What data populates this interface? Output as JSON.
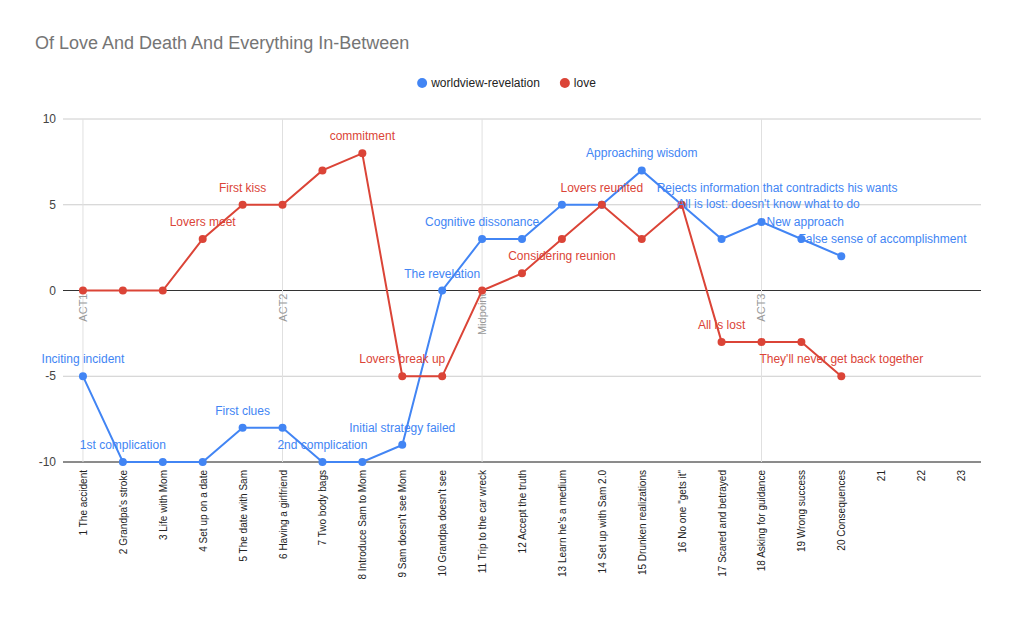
{
  "chart_data": {
    "type": "line",
    "title": "Of Love And Death And Everything In-Between",
    "categories": [
      "1 The accident",
      "2 Grandpa's stroke",
      "3 Life with Mom",
      "4 Set up on a date",
      "5 The date with Sam",
      "6 Having a girlfriend",
      "7 Two body bags",
      "8 Introduce Sam to Mom",
      "9 Sam doesn't see Mom",
      "10 Grandpa doesn't see",
      "11 Trip to the car wreck",
      "12 Accept the truth",
      "13 Learn he's a medium",
      "14 Set up with Sam 2.0",
      "15 Drunken realizations",
      "16 No one \"gets it\"",
      "17 Scared and betrayed",
      "18 Asking for guidance",
      "19 Wrong success",
      "20 Consequences",
      "21",
      "22",
      "23"
    ],
    "series": [
      {
        "name": "worldview-revelation",
        "color": "#4285f4",
        "marker": "circle",
        "values": [
          -5,
          -10,
          -10,
          -10,
          -8,
          -8,
          -10,
          -10,
          -9,
          0,
          3,
          3,
          5,
          5,
          7,
          5,
          3,
          4,
          3,
          2,
          null,
          null,
          null
        ],
        "annotations": [
          "Inciting incident",
          "1st complication",
          null,
          null,
          "First clues",
          null,
          "2nd complication",
          null,
          "Initial strategy failed",
          "The revelation",
          "Cognitive dissonance",
          null,
          null,
          null,
          "Approaching wisdom",
          "Rejects information that contradicts his wants",
          "All is lost: doesn't know what to do",
          "New approach",
          "False sense of accomplishment",
          null,
          null,
          null,
          null
        ]
      },
      {
        "name": "love",
        "color": "#db4437",
        "marker": "circle",
        "values": [
          0,
          0,
          0,
          3,
          5,
          5,
          7,
          8,
          -5,
          -5,
          0,
          1,
          3,
          5,
          3,
          5,
          -3,
          -3,
          -3,
          -5,
          null,
          null,
          null
        ],
        "annotations": [
          null,
          null,
          null,
          "Lovers meet",
          "First kiss",
          null,
          null,
          "commitment",
          "Lovers break up",
          null,
          null,
          null,
          "Considering reunion",
          "Lovers reunited",
          null,
          null,
          "All is lost",
          null,
          null,
          "They'll never get back together",
          null,
          null,
          null
        ]
      }
    ],
    "ylim": [
      -10,
      10
    ],
    "yticks": [
      -10,
      -5,
      0,
      5,
      10
    ],
    "grid": true,
    "legend": "top",
    "act_markers": [
      {
        "at": "1 The accident",
        "label": "ACT1"
      },
      {
        "at": "6 Having a girlfriend",
        "label": "ACT2"
      },
      {
        "at": "11 Trip to the car wreck",
        "label": "Midpoint"
      },
      {
        "at": "18 Asking for guidance",
        "label": "ACT3"
      }
    ]
  }
}
